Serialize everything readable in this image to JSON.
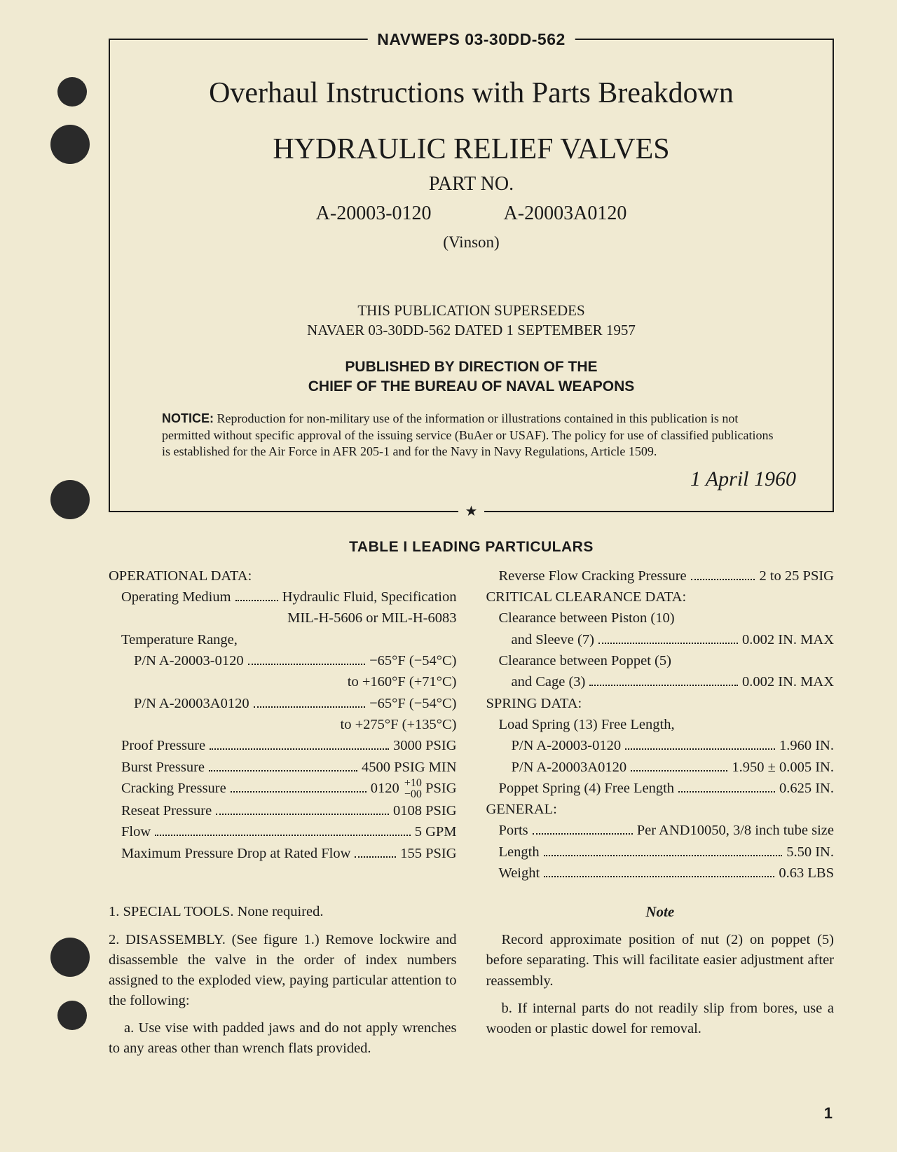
{
  "header": {
    "doc_number": "NAVWEPS 03-30DD-562",
    "title_line1": "Overhaul Instructions with Parts Breakdown",
    "title_line2": "HYDRAULIC RELIEF VALVES",
    "part_no_label": "PART NO.",
    "part_no_1": "A-20003-0120",
    "part_no_2": "A-20003A0120",
    "vendor": "(Vinson)",
    "supersedes_line1": "THIS PUBLICATION SUPERSEDES",
    "supersedes_line2": "NAVAER 03-30DD-562 DATED 1 SEPTEMBER 1957",
    "published_by_line1": "PUBLISHED BY DIRECTION OF THE",
    "published_by_line2": "CHIEF OF THE BUREAU OF NAVAL WEAPONS",
    "notice_label": "NOTICE:",
    "notice_text": " Reproduction for non-military use of the information or illustrations contained in this publication is not permitted without specific approval of the issuing service (BuAer or USAF). The policy for use of classified publications is established for the Air Force in AFR 205-1 and for the Navy in Navy Regulations, Article 1509.",
    "pub_date": "1 April 1960"
  },
  "table": {
    "title": "TABLE I   LEADING PARTICULARS",
    "left": {
      "op_data_head": "OPERATIONAL DATA:",
      "op_medium_label": "Operating Medium",
      "op_medium_val1": "Hydraulic Fluid, Specification",
      "op_medium_val2": "MIL-H-5606 or MIL-H-6083",
      "temp_range_label": "Temperature Range,",
      "temp_pn1_label": "P/N A-20003-0120",
      "temp_pn1_val1": "−65°F (−54°C)",
      "temp_pn1_val2": "to +160°F (+71°C)",
      "temp_pn2_label": "P/N A-20003A0120",
      "temp_pn2_val1": "−65°F (−54°C)",
      "temp_pn2_val2": "to +275°F (+135°C)",
      "proof_label": "Proof Pressure",
      "proof_val": "3000 PSIG",
      "burst_label": "Burst Pressure",
      "burst_val": "4500 PSIG MIN",
      "crack_label": "Cracking Pressure",
      "crack_val_main": "0120",
      "crack_tol_top": "+10",
      "crack_tol_bot": "−00",
      "crack_unit": "PSIG",
      "reseat_label": "Reseat Pressure",
      "reseat_val": "0108 PSIG",
      "flow_label": "Flow",
      "flow_val": "5 GPM",
      "maxdrop_label": "Maximum Pressure Drop at Rated Flow",
      "maxdrop_val": "155 PSIG"
    },
    "right": {
      "revflow_label": "Reverse Flow Cracking Pressure",
      "revflow_val": "2 to 25 PSIG",
      "crit_head": "CRITICAL CLEARANCE DATA:",
      "clr1_label1": "Clearance between Piston (10)",
      "clr1_label2": "and Sleeve (7)",
      "clr1_val": "0.002 IN. MAX",
      "clr2_label1": "Clearance between Poppet (5)",
      "clr2_label2": "and Cage (3)",
      "clr2_val": "0.002 IN. MAX",
      "spring_head": "SPRING DATA:",
      "load_spring_label": "Load Spring (13) Free Length,",
      "load_pn1_label": "P/N A-20003-0120",
      "load_pn1_val": "1.960 IN.",
      "load_pn2_label": "P/N A-20003A0120",
      "load_pn2_val": "1.950 ± 0.005 IN.",
      "poppet_spring_label": "Poppet Spring (4) Free Length",
      "poppet_spring_val": "0.625 IN.",
      "general_head": "GENERAL:",
      "ports_label": "Ports",
      "ports_val": "Per AND10050, 3/8 inch tube size",
      "length_label": "Length",
      "length_val": "5.50 IN.",
      "weight_label": "Weight",
      "weight_val": "0.63 LBS"
    }
  },
  "body": {
    "left": {
      "p1": "1. SPECIAL TOOLS. None required.",
      "p2": "2. DISASSEMBLY. (See figure 1.) Remove lockwire and disassemble the valve in the order of index numbers assigned to the exploded view, paying particular attention to the following:",
      "p2a": "a. Use vise with padded jaws and do not apply wrenches to any areas other than wrench flats provided."
    },
    "right": {
      "note_head": "Note",
      "note_body": "Record approximate position of nut (2) on poppet (5) before separating. This will facilitate easier adjustment after reassembly.",
      "p_b": "b. If internal parts do not readily slip from bores, use a wooden or plastic dowel for removal."
    }
  },
  "page_number": "1"
}
